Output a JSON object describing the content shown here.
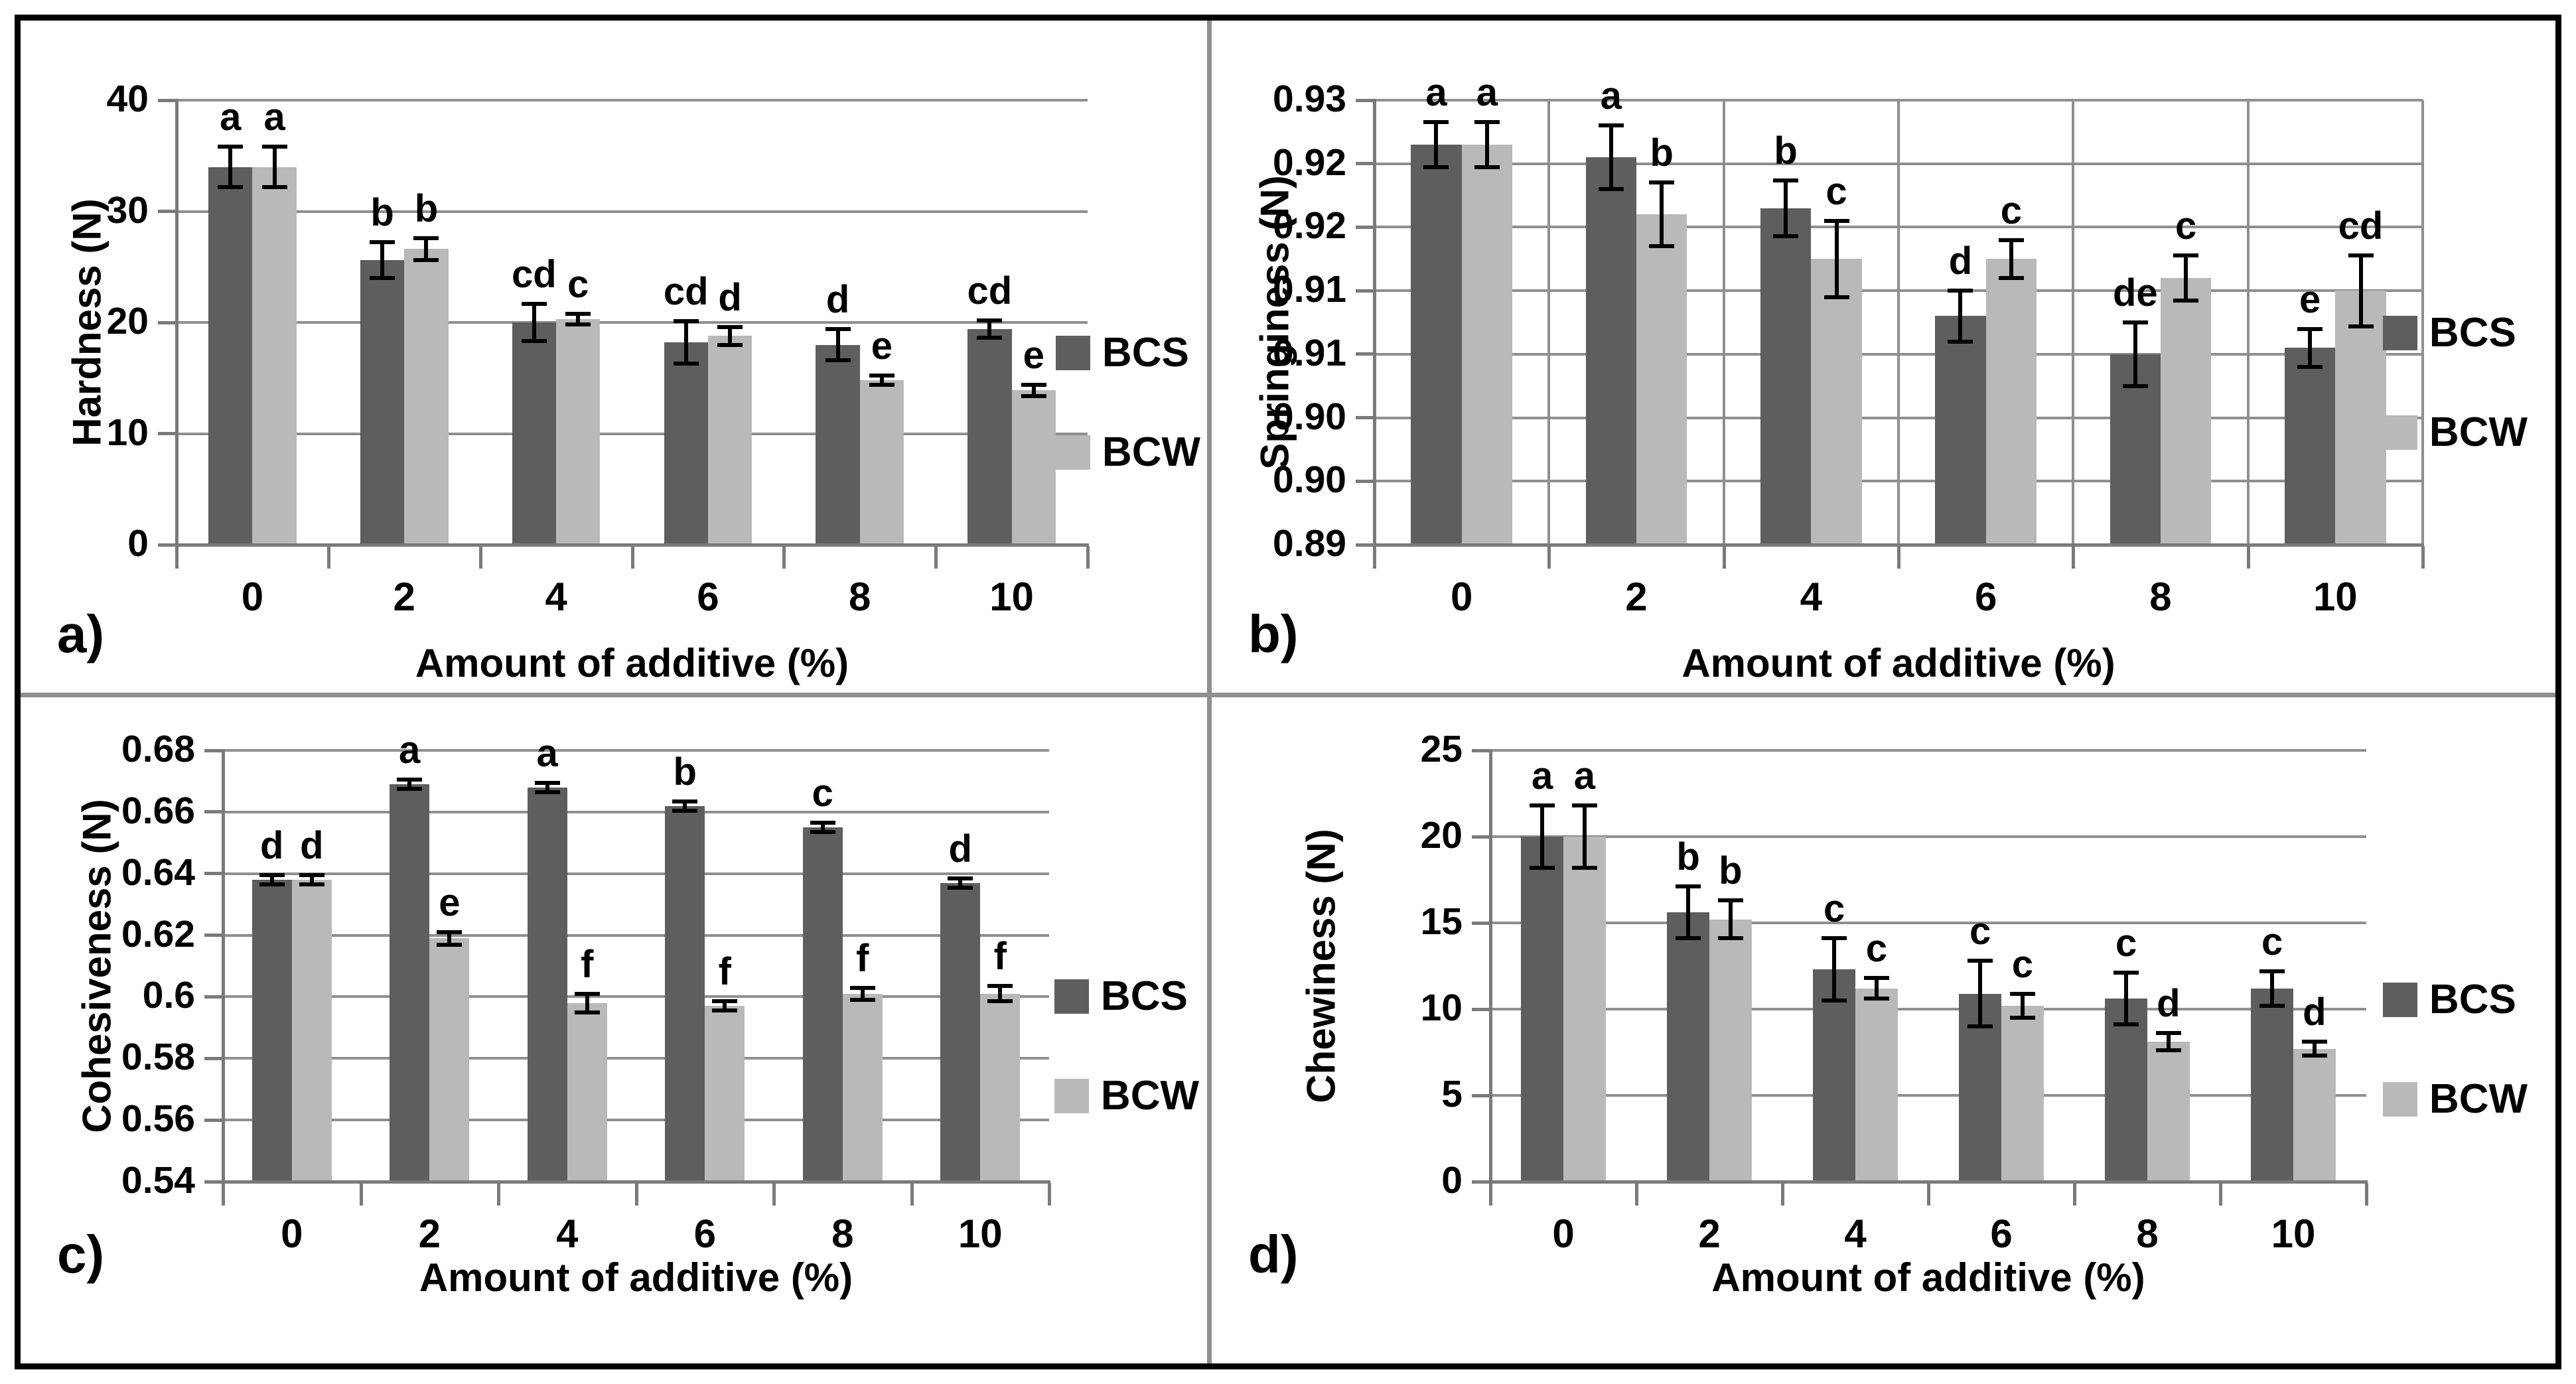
{
  "legend": {
    "items": [
      {
        "label": "BCS",
        "color": "#5e5e5e"
      },
      {
        "label": "BCW",
        "color": "#b9b9b9"
      }
    ]
  },
  "chart_data": [
    {
      "panel_label": "a)",
      "type": "bar",
      "ylabel": "Hardness (N)",
      "xlabel": "Amount of additive (%)",
      "categories": [
        "0",
        "2",
        "4",
        "6",
        "8",
        "10"
      ],
      "ylim": [
        0,
        40
      ],
      "yticks": [
        {
          "v": 0,
          "label": "0"
        },
        {
          "v": 10,
          "label": "10"
        },
        {
          "v": 20,
          "label": "20"
        },
        {
          "v": 30,
          "label": "30"
        },
        {
          "v": 40,
          "label": "40"
        }
      ],
      "grid": "horizontal",
      "legend_position": "right",
      "series": [
        {
          "name": "BCS",
          "color": "#5e5e5e",
          "values": [
            34.0,
            25.6,
            20.0,
            18.2,
            18.0,
            19.4
          ],
          "errors": [
            1.8,
            1.6,
            1.7,
            1.9,
            1.4,
            0.8
          ],
          "letters": [
            "a",
            "b",
            "cd",
            "cd",
            "d",
            "cd"
          ]
        },
        {
          "name": "BCW",
          "color": "#b9b9b9",
          "values": [
            34.0,
            26.6,
            20.3,
            18.8,
            14.8,
            13.9
          ],
          "errors": [
            1.8,
            1.0,
            0.5,
            0.8,
            0.4,
            0.5
          ],
          "letters": [
            "a",
            "b",
            "c",
            "d",
            "e",
            "e"
          ]
        }
      ]
    },
    {
      "panel_label": "b)",
      "type": "bar",
      "ylabel": "Springiness (N)",
      "xlabel": "Amount of additive (%)",
      "categories": [
        "0",
        "2",
        "4",
        "6",
        "8",
        "10"
      ],
      "ylim": [
        0.89,
        0.925
      ],
      "yticks": [
        {
          "v": 0.89,
          "label": "0.89"
        },
        {
          "v": 0.895,
          "label": "0.90"
        },
        {
          "v": 0.9,
          "label": "0.90"
        },
        {
          "v": 0.905,
          "label": "0.91"
        },
        {
          "v": 0.91,
          "label": "0.91"
        },
        {
          "v": 0.915,
          "label": "0.92"
        },
        {
          "v": 0.92,
          "label": "0.92"
        },
        {
          "v": 0.925,
          "label": "0.93"
        }
      ],
      "grid": "horizontal+vertical",
      "legend_position": "right",
      "series": [
        {
          "name": "BCS",
          "color": "#5e5e5e",
          "values": [
            0.9215,
            0.9205,
            0.9165,
            0.908,
            0.905,
            0.9055
          ],
          "errors": [
            0.0018,
            0.0025,
            0.0022,
            0.002,
            0.0025,
            0.0015
          ],
          "letters": [
            "a",
            "a",
            "b",
            "d",
            "de",
            "e"
          ]
        },
        {
          "name": "BCW",
          "color": "#b9b9b9",
          "values": [
            0.9215,
            0.916,
            0.9125,
            0.9125,
            0.911,
            0.91
          ],
          "errors": [
            0.0018,
            0.0025,
            0.003,
            0.0015,
            0.0018,
            0.0028
          ],
          "letters": [
            "a",
            "b",
            "c",
            "c",
            "c",
            "cd"
          ]
        }
      ]
    },
    {
      "panel_label": "c)",
      "type": "bar",
      "ylabel": "Cohesiveness (N)",
      "xlabel": "Amount of additive (%)",
      "categories": [
        "0",
        "2",
        "4",
        "6",
        "8",
        "10"
      ],
      "ylim": [
        0.54,
        0.68
      ],
      "yticks": [
        {
          "v": 0.54,
          "label": "0.54"
        },
        {
          "v": 0.56,
          "label": "0.56"
        },
        {
          "v": 0.58,
          "label": "0.58"
        },
        {
          "v": 0.6,
          "label": "0.6"
        },
        {
          "v": 0.62,
          "label": "0.62"
        },
        {
          "v": 0.64,
          "label": "0.64"
        },
        {
          "v": 0.66,
          "label": "0.66"
        },
        {
          "v": 0.68,
          "label": "0.68"
        }
      ],
      "grid": "horizontal",
      "legend_position": "right",
      "series": [
        {
          "name": "BCS",
          "color": "#5e5e5e",
          "values": [
            0.638,
            0.669,
            0.668,
            0.662,
            0.655,
            0.637
          ],
          "errors": [
            0.0015,
            0.0015,
            0.0015,
            0.0015,
            0.0015,
            0.0015
          ],
          "letters": [
            "d",
            "a",
            "a",
            "b",
            "c",
            "d"
          ]
        },
        {
          "name": "BCW",
          "color": "#b9b9b9",
          "values": [
            0.638,
            0.619,
            0.598,
            0.597,
            0.601,
            0.601
          ],
          "errors": [
            0.0015,
            0.002,
            0.003,
            0.0015,
            0.002,
            0.0025
          ],
          "letters": [
            "d",
            "e",
            "f",
            "f",
            "f",
            "f"
          ]
        }
      ]
    },
    {
      "panel_label": "d)",
      "type": "bar",
      "ylabel": "Chewiness (N)",
      "xlabel": "Amount of additive (%)",
      "categories": [
        "0",
        "2",
        "4",
        "6",
        "8",
        "10"
      ],
      "ylim": [
        0,
        25
      ],
      "yticks": [
        {
          "v": 0,
          "label": "0"
        },
        {
          "v": 5,
          "label": "5"
        },
        {
          "v": 10,
          "label": "10"
        },
        {
          "v": 15,
          "label": "15"
        },
        {
          "v": 20,
          "label": "20"
        },
        {
          "v": 25,
          "label": "25"
        }
      ],
      "grid": "horizontal",
      "legend_position": "right",
      "series": [
        {
          "name": "BCS",
          "color": "#5e5e5e",
          "values": [
            20.0,
            15.6,
            12.3,
            10.9,
            10.6,
            11.2
          ],
          "errors": [
            1.8,
            1.5,
            1.8,
            1.9,
            1.5,
            1.0
          ],
          "letters": [
            "a",
            "b",
            "c",
            "c",
            "c",
            "c"
          ]
        },
        {
          "name": "BCW",
          "color": "#b9b9b9",
          "values": [
            20.0,
            15.2,
            11.2,
            10.2,
            8.1,
            7.7
          ],
          "errors": [
            1.8,
            1.1,
            0.6,
            0.7,
            0.5,
            0.4
          ],
          "letters": [
            "a",
            "b",
            "c",
            "c",
            "d",
            "d"
          ]
        }
      ]
    }
  ]
}
